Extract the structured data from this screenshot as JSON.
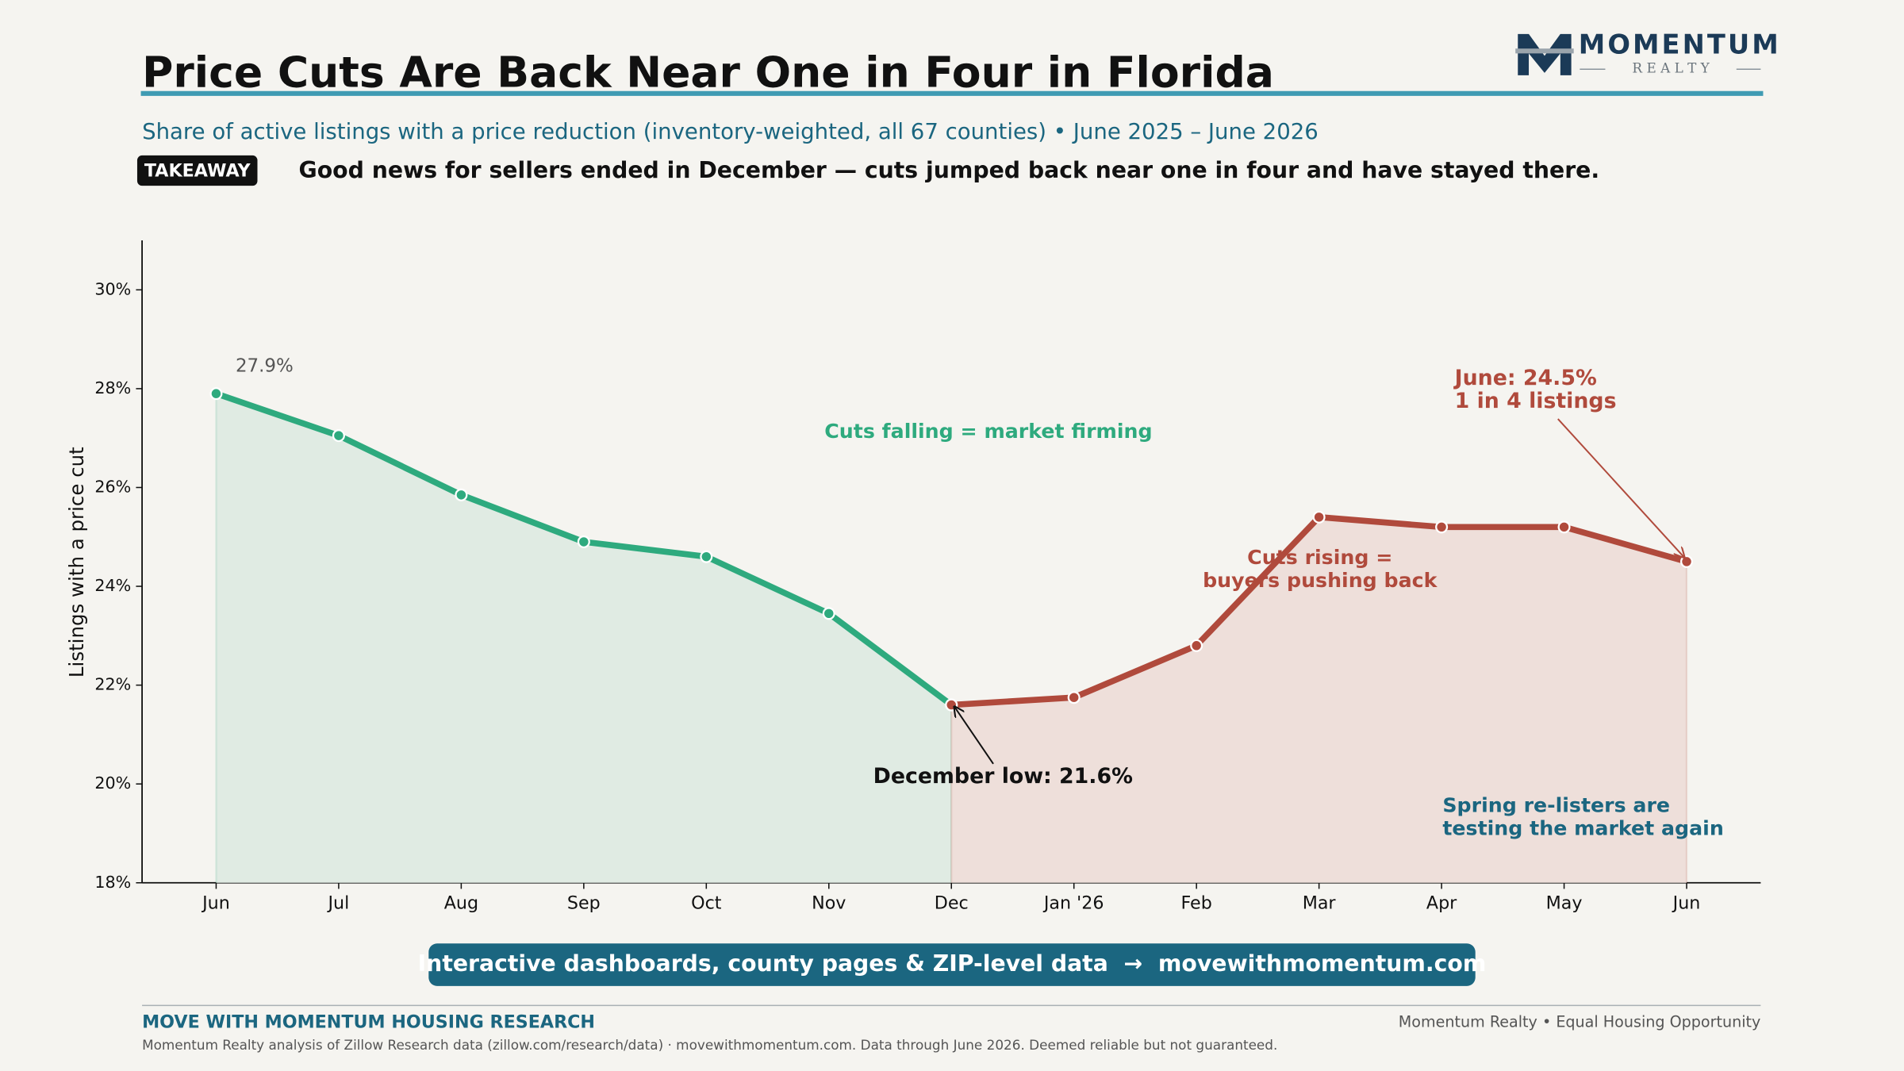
{
  "logo": {
    "name": "MOMENTUM",
    "tagline": "R E A L T Y"
  },
  "chart_data": {
    "type": "line",
    "title": "Price Cuts Are Back Near One in Four in Florida",
    "subtitle": "Share of active listings with a price reduction (inventory-weighted, all 67 counties)  •  June 2025 – June 2026",
    "takeaway_badge": "TAKEAWAY",
    "takeaway": "Good news for sellers ended in December — cuts jumped back near one in four and have stayed there.",
    "y_label": "Listings with a price cut",
    "categories": [
      "Jun",
      "Jul",
      "Aug",
      "Sep",
      "Oct",
      "Nov",
      "Dec",
      "Jan '26",
      "Feb",
      "Mar",
      "Apr",
      "May",
      "Jun"
    ],
    "series": [
      {
        "name": "Cuts falling",
        "color": "#2eaa7e",
        "fill": "#e0ebe3",
        "values": [
          27.9,
          27.05,
          25.85,
          24.9,
          24.6,
          23.45,
          21.6,
          null,
          null,
          null,
          null,
          null,
          null
        ]
      },
      {
        "name": "Cuts rising",
        "color": "#b04a3c",
        "fill": "#eedfda",
        "values": [
          null,
          null,
          null,
          null,
          null,
          null,
          21.6,
          21.75,
          22.8,
          25.4,
          25.2,
          25.2,
          24.5
        ]
      }
    ],
    "ylim": [
      18,
      31
    ],
    "yticks": [
      {
        "value": 18,
        "label": "18%"
      },
      {
        "value": 20,
        "label": "20%"
      },
      {
        "value": 22,
        "label": "22%"
      },
      {
        "value": 24,
        "label": "24%"
      },
      {
        "value": 26,
        "label": "26%"
      },
      {
        "value": 28,
        "label": "28%"
      },
      {
        "value": 30,
        "label": "30%"
      }
    ],
    "annotations": [
      {
        "lines": [
          "27.9%"
        ],
        "color": "#555555"
      },
      {
        "lines": [
          "Cuts falling = market firming"
        ],
        "color": "#2eaa7e"
      },
      {
        "lines": [
          "Cuts rising =",
          "buyers pushing back"
        ],
        "color": "#b04a3c"
      },
      {
        "lines": [
          "December low: 21.6%"
        ],
        "color": "#111111"
      },
      {
        "lines": [
          "June: 24.5%",
          "1 in 4 listings"
        ],
        "color": "#b04a3c"
      },
      {
        "lines": [
          "Spring re-listers are",
          "testing the market again"
        ],
        "color": "#1b6680"
      }
    ],
    "cta": "Interactive dashboards, county pages & ZIP-level data  →  movewithmomentum.com",
    "footer_left": "MOVE WITH MOMENTUM HOUSING RESEARCH",
    "footer_right": "Momentum Realty  •  Equal Housing Opportunity",
    "source": "Momentum Realty analysis of Zillow Research data (zillow.com/research/data) · movewithmomentum.com. Data through June 2026. Deemed reliable but not guaranteed."
  }
}
